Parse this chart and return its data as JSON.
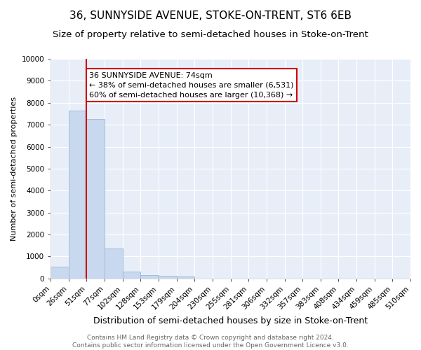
{
  "title": "36, SUNNYSIDE AVENUE, STOKE-ON-TRENT, ST6 6EB",
  "subtitle": "Size of property relative to semi-detached houses in Stoke-on-Trent",
  "xlabel": "Distribution of semi-detached houses by size in Stoke-on-Trent",
  "ylabel": "Number of semi-detached properties",
  "bin_labels": [
    "0sqm",
    "26sqm",
    "51sqm",
    "77sqm",
    "102sqm",
    "128sqm",
    "153sqm",
    "179sqm",
    "204sqm",
    "230sqm",
    "255sqm",
    "281sqm",
    "306sqm",
    "332sqm",
    "357sqm",
    "383sqm",
    "408sqm",
    "434sqm",
    "459sqm",
    "485sqm",
    "510sqm"
  ],
  "bar_heights": [
    550,
    7650,
    7250,
    1350,
    310,
    150,
    110,
    80,
    0,
    0,
    0,
    0,
    0,
    0,
    0,
    0,
    0,
    0,
    0,
    0
  ],
  "bar_color": "#c8d8ee",
  "bar_edge_color": "#9ab8d8",
  "vline_x": 2,
  "vline_color": "#cc0000",
  "annotation_text": "36 SUNNYSIDE AVENUE: 74sqm\n← 38% of semi-detached houses are smaller (6,531)\n60% of semi-detached houses are larger (10,368) →",
  "annotation_box_color": "#ffffff",
  "annotation_box_edge": "#cc0000",
  "ylim": [
    0,
    10000
  ],
  "yticks": [
    0,
    1000,
    2000,
    3000,
    4000,
    5000,
    6000,
    7000,
    8000,
    9000,
    10000
  ],
  "background_color": "#e8eef8",
  "footer_text": "Contains HM Land Registry data © Crown copyright and database right 2024.\nContains public sector information licensed under the Open Government Licence v3.0.",
  "title_fontsize": 11,
  "subtitle_fontsize": 9.5,
  "xlabel_fontsize": 9,
  "ylabel_fontsize": 8,
  "tick_fontsize": 7.5,
  "footer_fontsize": 6.5,
  "annotation_fontsize": 8
}
